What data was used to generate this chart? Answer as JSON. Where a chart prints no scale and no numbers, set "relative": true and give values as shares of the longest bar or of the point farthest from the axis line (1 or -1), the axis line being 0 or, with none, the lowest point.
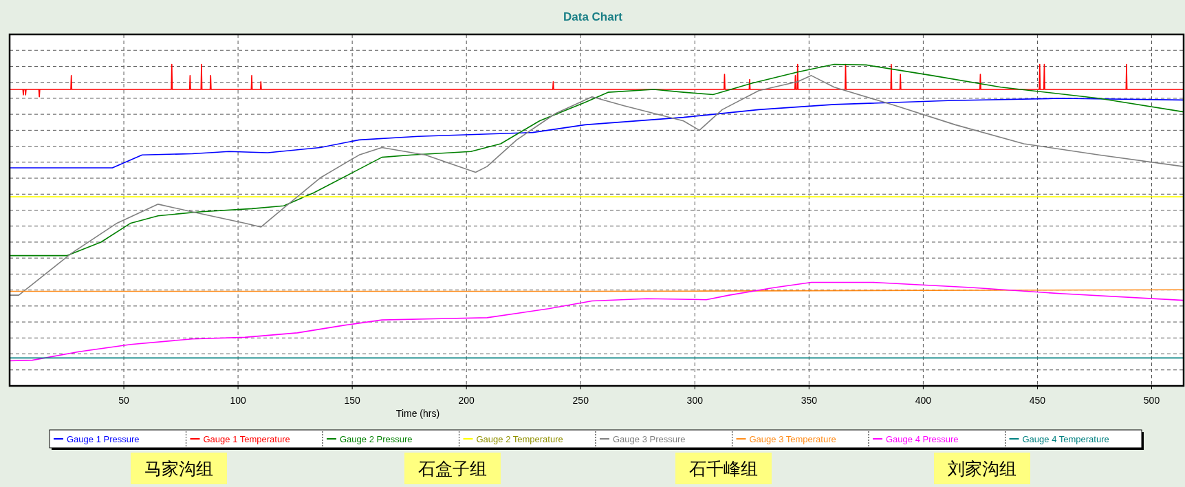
{
  "chart_data": {
    "type": "line",
    "title": "Data Chart",
    "xlabel": "Time (hrs)",
    "relative": true,
    "xlim": [
      0,
      514
    ],
    "xticks": [
      50,
      100,
      150,
      200,
      250,
      300,
      350,
      400,
      450,
      500
    ],
    "grid": true,
    "legend": "bottom",
    "line_style": "solid",
    "marker": "none",
    "annotations": [
      "马家沟组",
      "石盒子组",
      "石千峰组",
      "刘家沟组"
    ],
    "series": [
      {
        "name": "Gauge 1 Pressure",
        "color": "#0000ff",
        "x": [
          0,
          45,
          58,
          80,
          96,
          113,
          136,
          153,
          179,
          229,
          252,
          295,
          328,
          361,
          411,
          460,
          514
        ],
        "values": [
          0.678,
          0.678,
          0.718,
          0.722,
          0.729,
          0.725,
          0.741,
          0.765,
          0.776,
          0.788,
          0.812,
          0.835,
          0.859,
          0.875,
          0.887,
          0.894,
          0.889
        ]
      },
      {
        "name": "Gauge 1 Temperature",
        "color": "#ff0000",
        "x": [
          0,
          5.8,
          6,
          6.2,
          6.8,
          7,
          7.2,
          12.8,
          13,
          13.2,
          26.8,
          27,
          27.2,
          70.8,
          71,
          71.2,
          78.8,
          79,
          79.2,
          83.8,
          84,
          84.2,
          87.8,
          88,
          88.2,
          105.8,
          106,
          106.2,
          109.8,
          110,
          110.2,
          237.8,
          238,
          238.2,
          312.8,
          313,
          313.2,
          323.8,
          324,
          324.2,
          343.8,
          344,
          344.2,
          344.8,
          345,
          345.2,
          365.8,
          366,
          366.2,
          385.8,
          386,
          386.2,
          389.8,
          390,
          390.2,
          424.8,
          425,
          425.2,
          450.8,
          451,
          451.2,
          452.8,
          453,
          453.2,
          488.8,
          489,
          489.2,
          514
        ],
        "values": [
          0.922,
          0.922,
          0.905,
          0.922,
          0.922,
          0.905,
          0.922,
          0.922,
          0.899,
          0.922,
          0.922,
          0.965,
          0.922,
          0.922,
          1.0,
          0.922,
          0.922,
          0.965,
          0.922,
          0.922,
          1.0,
          0.922,
          0.922,
          0.965,
          0.922,
          0.922,
          0.965,
          0.922,
          0.922,
          0.946,
          0.922,
          0.922,
          0.946,
          0.922,
          0.922,
          0.969,
          0.922,
          0.922,
          0.953,
          0.922,
          0.922,
          0.965,
          0.922,
          0.922,
          1.0,
          0.922,
          0.922,
          1.0,
          0.922,
          0.922,
          1.0,
          0.922,
          0.922,
          0.969,
          0.922,
          0.922,
          0.969,
          0.922,
          0.922,
          1.0,
          0.922,
          0.922,
          1.0,
          0.922,
          0.922,
          1.0,
          0.922,
          0.922
        ]
      },
      {
        "name": "Gauge 2 Pressure",
        "color": "#008000",
        "x": [
          0,
          25,
          40,
          53,
          65,
          83,
          106,
          120,
          133,
          149,
          163,
          176,
          202,
          215,
          232,
          252,
          262,
          282,
          295,
          308,
          325,
          345,
          361,
          375,
          404,
          434,
          477,
          514
        ],
        "values": [
          0.405,
          0.405,
          0.447,
          0.506,
          0.529,
          0.541,
          0.551,
          0.56,
          0.6,
          0.659,
          0.711,
          0.718,
          0.729,
          0.753,
          0.824,
          0.882,
          0.913,
          0.922,
          0.913,
          0.906,
          0.941,
          0.976,
          1.0,
          0.998,
          0.965,
          0.929,
          0.894,
          0.852
        ]
      },
      {
        "name": "Gauge 2 Temperature",
        "color": "#ffff00",
        "x": [
          0,
          514
        ],
        "values": [
          0.588,
          0.588
        ]
      },
      {
        "name": "Gauge 3 Pressure",
        "color": "#808080",
        "x": [
          0,
          4,
          27,
          47,
          65,
          80,
          103,
          110,
          120,
          136,
          153,
          163,
          182,
          204,
          209,
          222,
          239,
          255,
          269,
          295,
          302,
          312,
          328,
          345,
          351,
          361,
          388,
          414,
          444,
          477,
          514
        ],
        "values": [
          0.282,
          0.282,
          0.412,
          0.506,
          0.565,
          0.541,
          0.506,
          0.494,
          0.553,
          0.647,
          0.718,
          0.741,
          0.718,
          0.664,
          0.682,
          0.765,
          0.847,
          0.899,
          0.871,
          0.824,
          0.795,
          0.859,
          0.918,
          0.946,
          0.965,
          0.929,
          0.871,
          0.812,
          0.753,
          0.718,
          0.682
        ]
      },
      {
        "name": "Gauge 3 Temperature",
        "color": "#ff8c1a",
        "x": [
          0,
          250,
          514
        ],
        "values": [
          0.294,
          0.294,
          0.299
        ]
      },
      {
        "name": "Gauge 4 Pressure",
        "color": "#ff00ff",
        "x": [
          0,
          10,
          30,
          53,
          80,
          103,
          126,
          146,
          163,
          189,
          209,
          236,
          255,
          279,
          305,
          315,
          335,
          351,
          378,
          421,
          460,
          514
        ],
        "values": [
          0.078,
          0.08,
          0.106,
          0.129,
          0.146,
          0.151,
          0.165,
          0.188,
          0.205,
          0.209,
          0.212,
          0.24,
          0.264,
          0.271,
          0.268,
          0.282,
          0.306,
          0.322,
          0.322,
          0.306,
          0.287,
          0.266
        ]
      },
      {
        "name": "Gauge 4 Temperature",
        "color": "#008080",
        "x": [
          0,
          514
        ],
        "values": [
          0.087,
          0.087
        ]
      }
    ]
  }
}
